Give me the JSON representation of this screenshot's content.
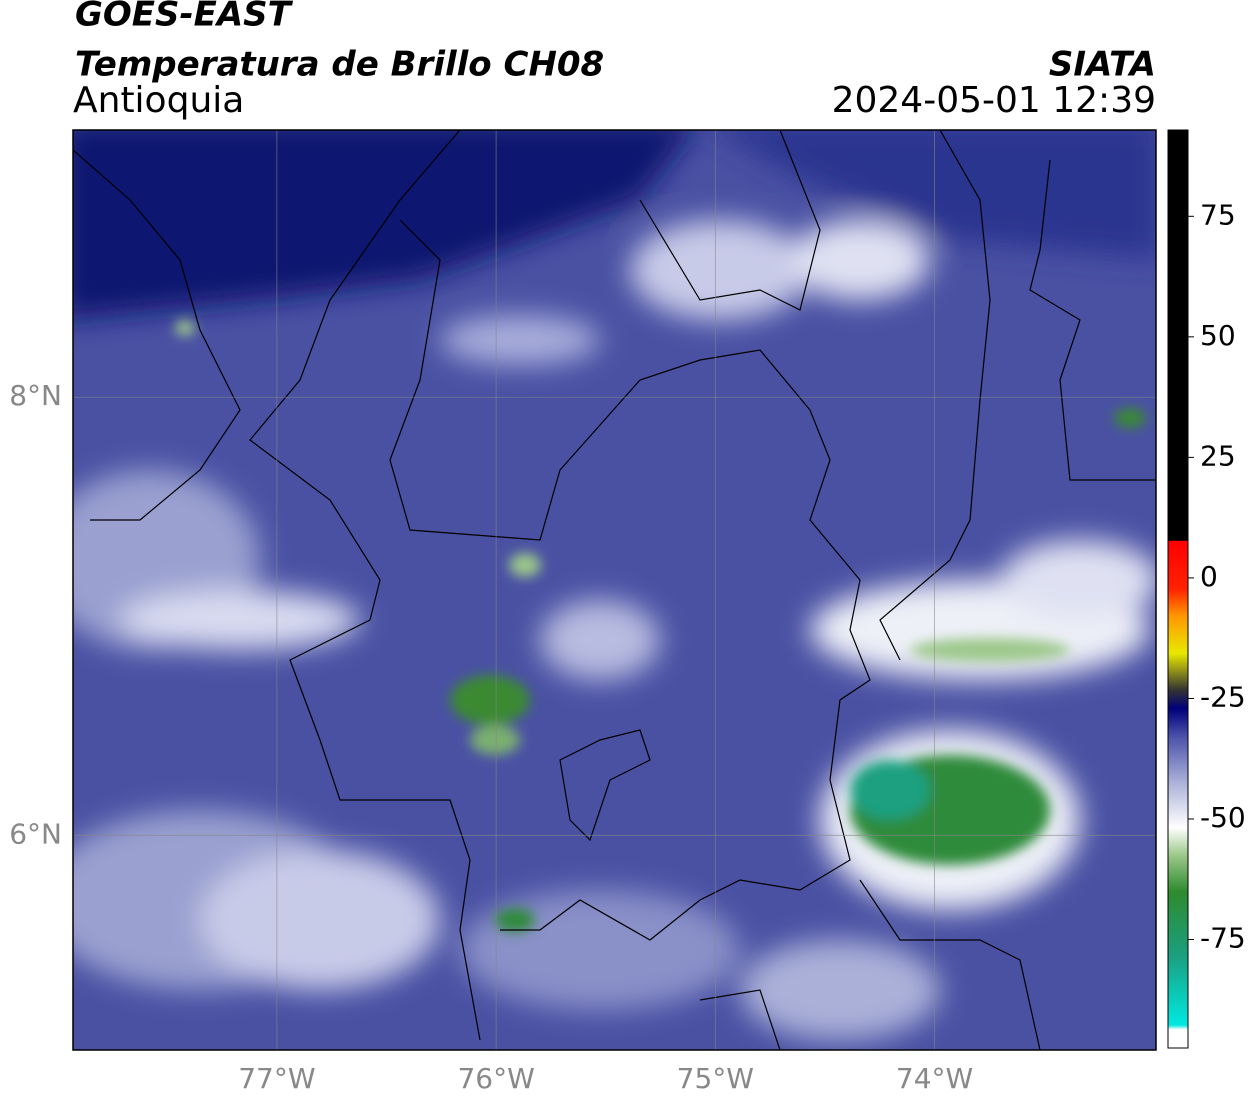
{
  "header": {
    "satellite": "GOES-EAST",
    "product": "Temperatura de Brillo CH08",
    "region": "Antioquia",
    "source": "SIATA",
    "datetime": "2024-05-01 12:39"
  },
  "map": {
    "lat_range": [
      5.02,
      9.22
    ],
    "lon_range": [
      -77.93,
      -72.99
    ],
    "lat_ticks": [
      {
        "value": 8,
        "label": "8°N"
      },
      {
        "value": 6,
        "label": "6°N"
      }
    ],
    "lon_ticks": [
      {
        "value": -77,
        "label": "77°W"
      },
      {
        "value": -76,
        "label": "76°W"
      },
      {
        "value": -75,
        "label": "75°W"
      },
      {
        "value": -74,
        "label": "74°W"
      }
    ]
  },
  "colorbar": {
    "range": [
      -97.5,
      92.9
    ],
    "ticks": [
      75,
      50,
      25,
      0,
      -25,
      -50,
      -75
    ]
  }
}
